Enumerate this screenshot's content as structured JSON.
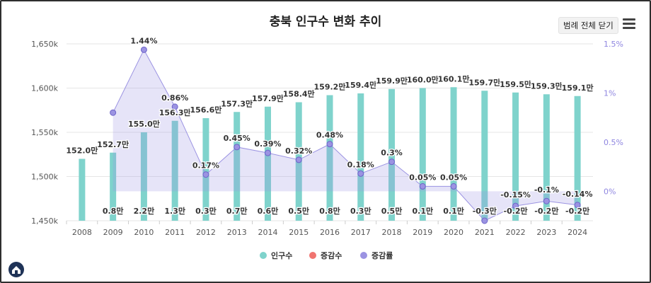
{
  "title": "충북 인구수 변화 추이",
  "legend_button": "범례 전체 닫기",
  "chart_data": {
    "type": "bar+line",
    "title": "충북 인구수 변화 추이",
    "categories": [
      "2008",
      "2009",
      "2010",
      "2011",
      "2012",
      "2013",
      "2014",
      "2015",
      "2016",
      "2017",
      "2018",
      "2019",
      "2020",
      "2021",
      "2022",
      "2023",
      "2024"
    ],
    "left_axis": {
      "min": 1450,
      "max": 1650,
      "ticks": [
        "1,650k",
        "1,600k",
        "1,550k",
        "1,500k",
        "1,450k"
      ],
      "tick_values": [
        1650,
        1600,
        1550,
        1500,
        1450
      ]
    },
    "right_axis": {
      "min": -0.3,
      "max": 1.5,
      "ticks": [
        "1.5%",
        "1%",
        "0.5%",
        "0%"
      ],
      "tick_values": [
        1.5,
        1,
        0.5,
        0
      ]
    },
    "series": [
      {
        "name": "인구수",
        "type": "bar",
        "color": "#7fd3cc",
        "values": [
          1520,
          1527,
          1550,
          1563,
          1566,
          1573,
          1579,
          1584,
          1592,
          1594,
          1599,
          1600,
          1601,
          1597,
          1595,
          1593,
          1591
        ],
        "labels": [
          "152.0만",
          "152.7만",
          "155.0만",
          "156.3만",
          "156.6만",
          "157.3만",
          "157.9만",
          "158.4만",
          "159.2만",
          "159.4만",
          "159.9만",
          "160.0만",
          "160.1만",
          "159.7만",
          "159.5만",
          "159.3만",
          "159.1만"
        ]
      },
      {
        "name": "증감수",
        "type": "bar",
        "color": "#f07470",
        "labels": [
          "",
          "0.8만",
          "2.2만",
          "1.3만",
          "0.3만",
          "0.7만",
          "0.6만",
          "0.5만",
          "0.8만",
          "0.3만",
          "0.5만",
          "0.1만",
          "0.1만",
          "-0.3만",
          "-0.2만",
          "-0.2만",
          "-0.2만"
        ]
      },
      {
        "name": "증감률",
        "type": "area",
        "color": "#9b93e2",
        "values": [
          null,
          0.8,
          1.44,
          0.86,
          0.17,
          0.45,
          0.39,
          0.32,
          0.48,
          0.18,
          0.3,
          0.05,
          0.05,
          -0.3,
          -0.15,
          -0.1,
          -0.14
        ],
        "labels": [
          "",
          "",
          "1.44%",
          "0.86%",
          "0.17%",
          "0.45%",
          "0.39%",
          "0.32%",
          "0.48%",
          "0.18%",
          "0.3%",
          "0.05%",
          "0.05%",
          "",
          "-0.15%",
          "-0.1%",
          "-0.14%"
        ]
      }
    ]
  }
}
